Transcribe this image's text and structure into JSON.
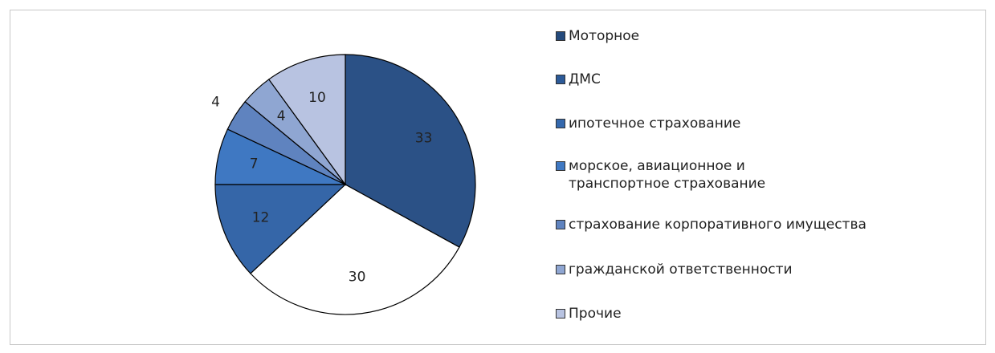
{
  "chart_data": {
    "type": "pie",
    "categories": [
      "Моторное",
      "ДМС",
      "ипотечное страхование",
      "морское, авиационное и транспортное страхование",
      "страхование корпоративного имущества",
      "гражданской ответственности",
      "Прочие"
    ],
    "values": [
      33,
      30,
      12,
      7,
      4,
      4,
      10
    ],
    "colors": [
      "#2b5186",
      "#ffffff",
      "#3566a8",
      "#3f78c2",
      "#5f83bf",
      "#8fa6d2",
      "#b8c3e1"
    ],
    "legend_colors": [
      "#244a7c",
      "#2c5a98",
      "#3468ad",
      "#3f78c2",
      "#5f83bf",
      "#8fa6d2",
      "#b8c3e1"
    ],
    "legend": "right"
  }
}
